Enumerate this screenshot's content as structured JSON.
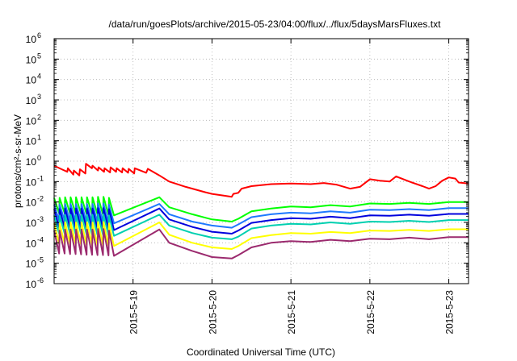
{
  "chart_data": {
    "type": "line",
    "title": "/data/run/goesPlots/archive/2015-05-23/04:00/flux/../flux/5daysMarsFluxes.txt",
    "xlabel": "Coordinated Universal Time (UTC)",
    "ylabel": "protons/cm²-s-sr-MeV",
    "yscale": "log",
    "ylim": [
      1e-06,
      1000000.0
    ],
    "xlim": [
      "2015-05-18 00:00",
      "2015-05-23 06:00"
    ],
    "grid": true,
    "legend": "none",
    "yticks": [
      {
        "v": 1e-06,
        "base": "10",
        "exp": "-6"
      },
      {
        "v": 1e-05,
        "base": "10",
        "exp": "-5"
      },
      {
        "v": 0.0001,
        "base": "10",
        "exp": "-4"
      },
      {
        "v": 0.001,
        "base": "10",
        "exp": "-3"
      },
      {
        "v": 0.01,
        "base": "10",
        "exp": "-2"
      },
      {
        "v": 0.1,
        "base": "10",
        "exp": "-1"
      },
      {
        "v": 1,
        "base": "10",
        "exp": "0"
      },
      {
        "v": 10.0,
        "base": "10",
        "exp": "1"
      },
      {
        "v": 100.0,
        "base": "10",
        "exp": "2"
      },
      {
        "v": 1000.0,
        "base": "10",
        "exp": "3"
      },
      {
        "v": 10000.0,
        "base": "10",
        "exp": "4"
      },
      {
        "v": 100000.0,
        "base": "10",
        "exp": "5"
      },
      {
        "v": 1000000.0,
        "base": "10",
        "exp": "6"
      }
    ],
    "xticks": [
      {
        "t": "2015-05-19 00:00",
        "label": "2015-5-19"
      },
      {
        "t": "2015-05-20 00:00",
        "label": "2015-5-20"
      },
      {
        "t": "2015-05-21 00:00",
        "label": "2015-5-21"
      },
      {
        "t": "2015-05-22 00:00",
        "label": "2015-5-22"
      },
      {
        "t": "2015-05-23 00:00",
        "label": "2015-5-23"
      }
    ],
    "series": [
      {
        "color": "#ff0000",
        "points": [
          [
            "2015-05-18 00:00",
            0.6
          ],
          [
            "2015-05-18 02:20",
            0.4
          ],
          [
            "2015-05-18 04:00",
            0.3
          ],
          [
            "2015-05-18 04:10",
            0.45
          ],
          [
            "2015-05-18 05:50",
            0.22
          ],
          [
            "2015-05-18 06:00",
            0.35
          ],
          [
            "2015-05-18 07:40",
            0.2
          ],
          [
            "2015-05-18 07:50",
            0.4
          ],
          [
            "2015-05-18 09:30",
            0.25
          ],
          [
            "2015-05-18 09:40",
            0.75
          ],
          [
            "2015-05-18 11:30",
            0.45
          ],
          [
            "2015-05-18 11:40",
            0.6
          ],
          [
            "2015-05-18 13:20",
            0.35
          ],
          [
            "2015-05-18 13:30",
            0.5
          ],
          [
            "2015-05-18 15:10",
            0.3
          ],
          [
            "2015-05-18 15:20",
            0.45
          ],
          [
            "2015-05-18 17:00",
            0.28
          ],
          [
            "2015-05-18 17:10",
            0.5
          ],
          [
            "2015-05-18 18:50",
            0.3
          ],
          [
            "2015-05-18 19:00",
            0.45
          ],
          [
            "2015-05-18 20:40",
            0.28
          ],
          [
            "2015-05-18 20:50",
            0.45
          ],
          [
            "2015-05-18 22:30",
            0.27
          ],
          [
            "2015-05-18 22:40",
            0.42
          ],
          [
            "2015-05-19 00:20",
            0.25
          ],
          [
            "2015-05-19 00:30",
            0.45
          ],
          [
            "2015-05-19 04:00",
            0.27
          ],
          [
            "2015-05-19 04:30",
            0.42
          ],
          [
            "2015-05-19 08:00",
            0.2
          ],
          [
            "2015-05-19 11:00",
            0.1
          ],
          [
            "2015-05-19 16:00",
            0.055
          ],
          [
            "2015-05-19 22:00",
            0.03
          ],
          [
            "2015-05-20 00:00",
            0.025
          ],
          [
            "2015-05-20 04:00",
            0.02
          ],
          [
            "2015-05-20 06:00",
            0.018
          ],
          [
            "2015-05-20 06:30",
            0.025
          ],
          [
            "2015-05-20 08:00",
            0.028
          ],
          [
            "2015-05-20 09:00",
            0.045
          ],
          [
            "2015-05-20 12:00",
            0.06
          ],
          [
            "2015-05-20 18:00",
            0.075
          ],
          [
            "2015-05-21 00:00",
            0.08
          ],
          [
            "2015-05-21 06:00",
            0.075
          ],
          [
            "2015-05-21 10:00",
            0.085
          ],
          [
            "2015-05-21 14:00",
            0.07
          ],
          [
            "2015-05-21 18:00",
            0.045
          ],
          [
            "2015-05-21 21:00",
            0.055
          ],
          [
            "2015-05-22 00:00",
            0.13
          ],
          [
            "2015-05-22 03:00",
            0.11
          ],
          [
            "2015-05-22 06:00",
            0.1
          ],
          [
            "2015-05-22 08:00",
            0.18
          ],
          [
            "2015-05-22 12:00",
            0.1
          ],
          [
            "2015-05-22 16:00",
            0.06
          ],
          [
            "2015-05-22 18:00",
            0.045
          ],
          [
            "2015-05-22 20:00",
            0.06
          ],
          [
            "2015-05-22 22:00",
            0.11
          ],
          [
            "2015-05-23 00:00",
            0.16
          ],
          [
            "2015-05-23 02:00",
            0.14
          ],
          [
            "2015-05-23 03:00",
            0.09
          ],
          [
            "2015-05-23 06:00",
            0.08
          ]
        ]
      },
      {
        "color": "#00ff00",
        "baseline": 0.011,
        "peaks": [
          0.016,
          0.016,
          0.017,
          0.017,
          0.017,
          0.017,
          0.017,
          0.017,
          0.018,
          0.018,
          0.016
        ],
        "troughs": [
          0.0028,
          0.0028,
          0.0027,
          0.0027,
          0.0026,
          0.0025,
          0.0025,
          0.0024,
          0.0024,
          0.0023,
          0.0022
        ],
        "tail": [
          [
            "2015-05-19 08:00",
            0.017
          ],
          [
            "2015-05-19 11:00",
            0.0055
          ],
          [
            "2015-05-19 18:00",
            0.0025
          ],
          [
            "2015-05-20 00:00",
            0.0014
          ],
          [
            "2015-05-20 06:00",
            0.0011
          ],
          [
            "2015-05-20 08:00",
            0.0015
          ],
          [
            "2015-05-20 12:00",
            0.0035
          ],
          [
            "2015-05-20 18:00",
            0.0048
          ],
          [
            "2015-05-21 00:00",
            0.006
          ],
          [
            "2015-05-21 06:00",
            0.0055
          ],
          [
            "2015-05-21 12:00",
            0.007
          ],
          [
            "2015-05-21 18:00",
            0.006
          ],
          [
            "2015-05-22 00:00",
            0.0085
          ],
          [
            "2015-05-22 06:00",
            0.008
          ],
          [
            "2015-05-22 12:00",
            0.009
          ],
          [
            "2015-05-22 18:00",
            0.008
          ],
          [
            "2015-05-23 00:00",
            0.01
          ],
          [
            "2015-05-23 06:00",
            0.01
          ]
        ]
      },
      {
        "color": "#1e78ff",
        "peaks": [
          0.0075,
          0.0075,
          0.008,
          0.008,
          0.008,
          0.008,
          0.008,
          0.008,
          0.0085,
          0.0085,
          0.0075
        ],
        "troughs": [
          0.0012,
          0.0012,
          0.0011,
          0.0011,
          0.0011,
          0.001,
          0.001,
          0.001,
          0.001,
          0.00095,
          0.0009
        ],
        "tail": [
          [
            "2015-05-19 08:00",
            0.008
          ],
          [
            "2015-05-19 11:00",
            0.0025
          ],
          [
            "2015-05-19 18:00",
            0.0011
          ],
          [
            "2015-05-20 00:00",
            0.0007
          ],
          [
            "2015-05-20 06:00",
            0.00055
          ],
          [
            "2015-05-20 08:00",
            0.0008
          ],
          [
            "2015-05-20 12:00",
            0.0018
          ],
          [
            "2015-05-20 18:00",
            0.0025
          ],
          [
            "2015-05-21 00:00",
            0.003
          ],
          [
            "2015-05-21 06:00",
            0.0028
          ],
          [
            "2015-05-21 12:00",
            0.0035
          ],
          [
            "2015-05-21 18:00",
            0.003
          ],
          [
            "2015-05-22 00:00",
            0.0042
          ],
          [
            "2015-05-22 06:00",
            0.004
          ],
          [
            "2015-05-22 12:00",
            0.0045
          ],
          [
            "2015-05-22 18:00",
            0.004
          ],
          [
            "2015-05-23 00:00",
            0.005
          ],
          [
            "2015-05-23 06:00",
            0.005
          ]
        ]
      },
      {
        "color": "#0000dd",
        "peaks": [
          0.0045,
          0.0045,
          0.0048,
          0.0048,
          0.0048,
          0.0048,
          0.0048,
          0.0048,
          0.005,
          0.005,
          0.0045
        ],
        "troughs": [
          0.00055,
          0.00055,
          0.0005,
          0.0005,
          0.0005,
          0.00048,
          0.00048,
          0.00046,
          0.00046,
          0.00044,
          0.00042
        ],
        "tail": [
          [
            "2015-05-19 08:00",
            0.0048
          ],
          [
            "2015-05-19 11:00",
            0.0014
          ],
          [
            "2015-05-19 18:00",
            0.0006
          ],
          [
            "2015-05-20 00:00",
            0.00035
          ],
          [
            "2015-05-20 06:00",
            0.00028
          ],
          [
            "2015-05-20 08:00",
            0.0004
          ],
          [
            "2015-05-20 12:00",
            0.00095
          ],
          [
            "2015-05-20 18:00",
            0.0013
          ],
          [
            "2015-05-21 00:00",
            0.0016
          ],
          [
            "2015-05-21 06:00",
            0.0015
          ],
          [
            "2015-05-21 12:00",
            0.0019
          ],
          [
            "2015-05-21 18:00",
            0.0016
          ],
          [
            "2015-05-22 00:00",
            0.0022
          ],
          [
            "2015-05-22 06:00",
            0.0021
          ],
          [
            "2015-05-22 12:00",
            0.0024
          ],
          [
            "2015-05-22 18:00",
            0.0021
          ],
          [
            "2015-05-23 00:00",
            0.0026
          ],
          [
            "2015-05-23 06:00",
            0.0026
          ]
        ]
      },
      {
        "color": "#00d0b0",
        "peaks": [
          0.0022,
          0.0022,
          0.0024,
          0.0024,
          0.0024,
          0.0024,
          0.0024,
          0.0024,
          0.0025,
          0.0025,
          0.0022
        ],
        "troughs": [
          0.00028,
          0.00028,
          0.00026,
          0.00026,
          0.00026,
          0.00025,
          0.00025,
          0.00024,
          0.00024,
          0.00023,
          0.00022
        ],
        "tail": [
          [
            "2015-05-19 08:00",
            0.0024
          ],
          [
            "2015-05-19 11:00",
            0.0007
          ],
          [
            "2015-05-19 18:00",
            0.0003
          ],
          [
            "2015-05-20 00:00",
            0.00018
          ],
          [
            "2015-05-20 06:00",
            0.00015
          ],
          [
            "2015-05-20 08:00",
            0.0002
          ],
          [
            "2015-05-20 12:00",
            0.0005
          ],
          [
            "2015-05-20 18:00",
            0.0007
          ],
          [
            "2015-05-21 00:00",
            0.00085
          ],
          [
            "2015-05-21 06:00",
            0.0008
          ],
          [
            "2015-05-21 12:00",
            0.001
          ],
          [
            "2015-05-21 18:00",
            0.00085
          ],
          [
            "2015-05-22 00:00",
            0.0011
          ],
          [
            "2015-05-22 06:00",
            0.00105
          ],
          [
            "2015-05-22 12:00",
            0.0012
          ],
          [
            "2015-05-22 18:00",
            0.00105
          ],
          [
            "2015-05-23 00:00",
            0.0013
          ],
          [
            "2015-05-23 06:00",
            0.0013
          ]
        ]
      },
      {
        "color": "#ffff00",
        "peaks": [
          0.0009,
          0.0009,
          0.001,
          0.001,
          0.001,
          0.001,
          0.001,
          0.001,
          0.00105,
          0.00105,
          0.0009
        ],
        "troughs": [
          9e-05,
          9e-05,
          8.5e-05,
          8.5e-05,
          8e-05,
          8e-05,
          7.8e-05,
          7.5e-05,
          7.5e-05,
          7.2e-05,
          7e-05
        ],
        "tail": [
          [
            "2015-05-19 08:00",
            0.001
          ],
          [
            "2015-05-19 11:00",
            0.00025
          ],
          [
            "2015-05-19 18:00",
            0.0001
          ],
          [
            "2015-05-20 00:00",
            6e-05
          ],
          [
            "2015-05-20 06:00",
            5e-05
          ],
          [
            "2015-05-20 08:00",
            7e-05
          ],
          [
            "2015-05-20 12:00",
            0.00017
          ],
          [
            "2015-05-20 18:00",
            0.00024
          ],
          [
            "2015-05-21 00:00",
            0.0003
          ],
          [
            "2015-05-21 06:00",
            0.00028
          ],
          [
            "2015-05-21 12:00",
            0.00034
          ],
          [
            "2015-05-21 18:00",
            0.0003
          ],
          [
            "2015-05-22 00:00",
            0.0004
          ],
          [
            "2015-05-22 06:00",
            0.00038
          ],
          [
            "2015-05-22 12:00",
            0.00043
          ],
          [
            "2015-05-22 18:00",
            0.00038
          ],
          [
            "2015-05-23 00:00",
            0.00046
          ],
          [
            "2015-05-23 06:00",
            0.00046
          ]
        ]
      },
      {
        "color": "#9b2a6e",
        "peaks": [
          0.0004,
          0.0004,
          0.00045,
          0.00045,
          0.00045,
          0.00045,
          0.00045,
          0.00045,
          0.00048,
          0.00048,
          0.0004
        ],
        "troughs": [
          3e-05,
          3e-05,
          2.8e-05,
          2.8e-05,
          2.7e-05,
          2.6e-05,
          2.6e-05,
          2.5e-05,
          2.5e-05,
          2.4e-05,
          2.3e-05
        ],
        "tail": [
          [
            "2015-05-19 08:00",
            0.00045
          ],
          [
            "2015-05-19 11:00",
            0.0001
          ],
          [
            "2015-05-19 18:00",
            4e-05
          ],
          [
            "2015-05-20 00:00",
            2e-05
          ],
          [
            "2015-05-20 06:00",
            1.7e-05
          ],
          [
            "2015-05-20 08:00",
            2.5e-05
          ],
          [
            "2015-05-20 12:00",
            6e-05
          ],
          [
            "2015-05-20 18:00",
            0.0001
          ],
          [
            "2015-05-21 00:00",
            0.00012
          ],
          [
            "2015-05-21 06:00",
            0.00011
          ],
          [
            "2015-05-21 12:00",
            0.00014
          ],
          [
            "2015-05-21 18:00",
            0.00012
          ],
          [
            "2015-05-22 00:00",
            0.00016
          ],
          [
            "2015-05-22 06:00",
            0.00015
          ],
          [
            "2015-05-22 12:00",
            0.00018
          ],
          [
            "2015-05-22 18:00",
            0.00015
          ],
          [
            "2015-05-23 00:00",
            0.00019
          ],
          [
            "2015-05-23 06:00",
            0.00019
          ]
        ]
      }
    ]
  }
}
